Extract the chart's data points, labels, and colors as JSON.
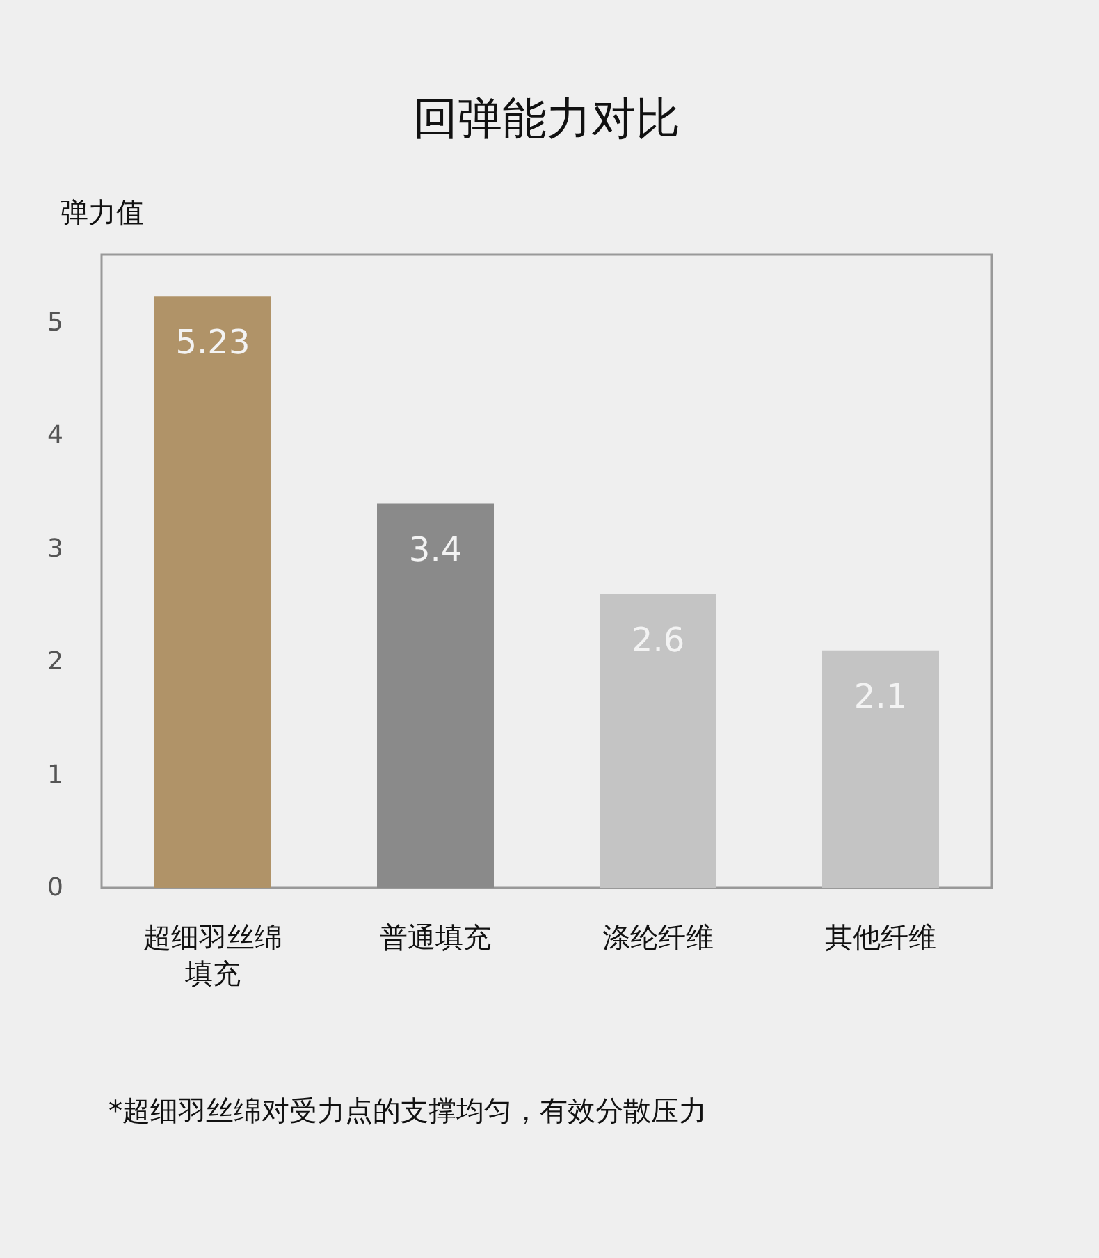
{
  "chart_data": {
    "type": "bar",
    "title": "回弹能力对比",
    "ylabel": "弹力值",
    "categories": [
      "超细羽丝绵填充",
      "普通填充",
      "涤纶纤维",
      "其他纤维"
    ],
    "values": [
      5.23,
      3.4,
      2.6,
      2.1
    ],
    "colors": [
      "#b09368",
      "#8a8a8a",
      "#c4c4c4",
      "#c4c4c4"
    ],
    "ylim": [
      0,
      5.6
    ],
    "yticks": [
      0,
      1,
      2,
      3,
      4,
      5
    ],
    "data_labels": true,
    "grid": false,
    "annotations": [
      "*超细羽丝绵对受力点的支撑均匀，有效分散压力"
    ]
  }
}
